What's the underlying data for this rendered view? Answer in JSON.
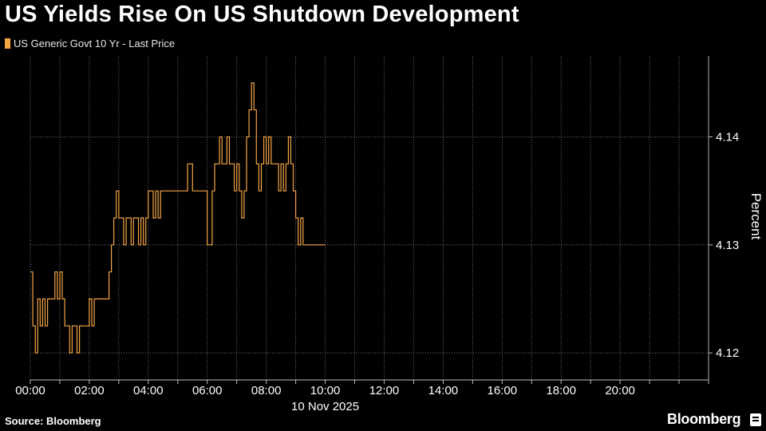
{
  "header": {
    "title": "US Yields Rise On US Shutdown Development",
    "legend_label": "US Generic Govt 10 Yr - Last Price"
  },
  "footer": {
    "source": "Source: Bloomberg",
    "brand": "Bloomberg"
  },
  "colors": {
    "background": "#000000",
    "series": "#f4a546",
    "grid": "#8a8a8a",
    "text": "#ffffff"
  },
  "chart_data": {
    "type": "line",
    "title": "US Yields Rise On US Shutdown Development",
    "ylabel": "Percent",
    "xlabel": "10 Nov 2025",
    "y_axis_side": "right",
    "grid": true,
    "legend_position": "top-left",
    "xlim": [
      "00:00",
      "23:00"
    ],
    "ylim": [
      4.1175,
      4.1475
    ],
    "y_ticks": [
      4.12,
      4.13,
      4.14
    ],
    "y_tick_labels": [
      "4.12",
      "4.13",
      "4.14"
    ],
    "x_ticks": [
      "00:00",
      "02:00",
      "04:00",
      "06:00",
      "08:00",
      "10:00",
      "12:00",
      "14:00",
      "16:00",
      "18:00",
      "20:00"
    ],
    "series": [
      {
        "name": "US Generic Govt 10 Yr - Last Price",
        "step": true,
        "x": [
          "00:00",
          "00:05",
          "00:10",
          "00:15",
          "00:20",
          "00:25",
          "00:30",
          "00:35",
          "00:40",
          "00:45",
          "00:50",
          "00:55",
          "01:00",
          "01:05",
          "01:10",
          "01:15",
          "01:20",
          "01:25",
          "01:30",
          "01:35",
          "01:40",
          "01:45",
          "01:50",
          "01:55",
          "02:00",
          "02:05",
          "02:10",
          "02:15",
          "02:20",
          "02:25",
          "02:30",
          "02:35",
          "02:40",
          "02:45",
          "02:50",
          "02:55",
          "03:00",
          "03:05",
          "03:10",
          "03:15",
          "03:20",
          "03:25",
          "03:30",
          "03:35",
          "03:40",
          "03:45",
          "03:50",
          "03:55",
          "04:00",
          "04:05",
          "04:10",
          "04:15",
          "04:20",
          "04:25",
          "04:30",
          "04:35",
          "04:40",
          "04:45",
          "04:50",
          "04:55",
          "05:00",
          "05:10",
          "05:20",
          "05:30",
          "05:40",
          "05:50",
          "06:00",
          "06:10",
          "06:15",
          "06:20",
          "06:25",
          "06:30",
          "06:35",
          "06:40",
          "06:45",
          "06:50",
          "06:55",
          "07:00",
          "07:05",
          "07:10",
          "07:15",
          "07:20",
          "07:25",
          "07:30",
          "07:35",
          "07:40",
          "07:45",
          "07:50",
          "07:55",
          "08:00",
          "08:05",
          "08:10",
          "08:15",
          "08:20",
          "08:25",
          "08:30",
          "08:35",
          "08:40",
          "08:45",
          "08:50",
          "08:55",
          "09:00",
          "09:05",
          "09:10",
          "09:15",
          "09:20",
          "09:25",
          "09:30",
          "09:35",
          "09:40",
          "09:45",
          "09:50"
        ],
        "values": [
          4.1275,
          4.1225,
          4.12,
          4.125,
          4.1225,
          4.125,
          4.1225,
          4.125,
          4.125,
          4.125,
          4.1275,
          4.125,
          4.1275,
          4.125,
          4.1225,
          4.1225,
          4.12,
          4.1225,
          4.1225,
          4.12,
          4.1225,
          4.1225,
          4.1225,
          4.1225,
          4.125,
          4.1225,
          4.125,
          4.125,
          4.125,
          4.125,
          4.125,
          4.125,
          4.1275,
          4.13,
          4.1325,
          4.135,
          4.1325,
          4.1325,
          4.13,
          4.1325,
          4.1325,
          4.13,
          4.1325,
          4.1325,
          4.13,
          4.1325,
          4.13,
          4.1325,
          4.135,
          4.135,
          4.1325,
          4.135,
          4.1325,
          4.135,
          4.135,
          4.135,
          4.135,
          4.135,
          4.135,
          4.135,
          4.135,
          4.135,
          4.1375,
          4.135,
          4.135,
          4.135,
          4.13,
          4.135,
          4.1375,
          4.1375,
          4.14,
          4.1375,
          4.1375,
          4.14,
          4.1375,
          4.1375,
          4.135,
          4.1375,
          4.135,
          4.1325,
          4.135,
          4.14,
          4.1425,
          4.145,
          4.1425,
          4.1375,
          4.135,
          4.1375,
          4.14,
          4.1375,
          4.14,
          4.1375,
          4.1375,
          4.1375,
          4.135,
          4.1375,
          4.135,
          4.1375,
          4.14,
          4.1375,
          4.135,
          4.1325,
          4.13,
          4.1325,
          4.13,
          4.13,
          4.13,
          4.13,
          4.13,
          4.13,
          4.13,
          4.13
        ]
      }
    ]
  }
}
